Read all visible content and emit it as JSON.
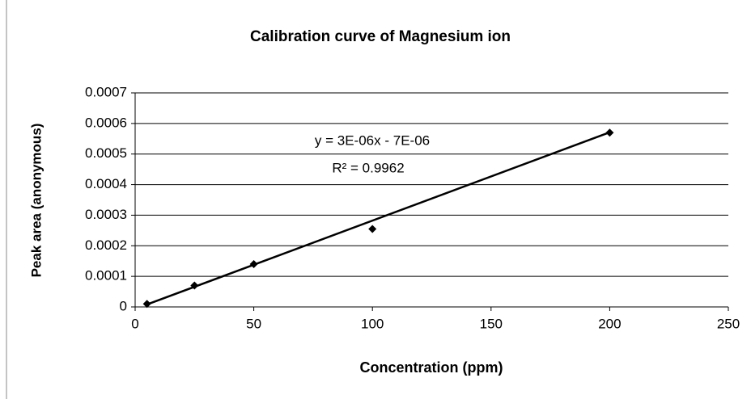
{
  "chart_data": {
    "type": "scatter",
    "title": "Calibration curve of Magnesium ion",
    "x_label": "Concentration (ppm)",
    "y_label": "Peak area (anonymous)",
    "x": [
      5,
      25,
      50,
      100,
      200
    ],
    "series": [
      {
        "color": "#000000",
        "values": [
          1e-05,
          7e-05,
          0.00014,
          0.000255,
          0.00057
        ]
      }
    ],
    "trendline": {
      "x": [
        5,
        200
      ],
      "values": [
        8e-06,
        0.000571
      ],
      "color": "#000000"
    },
    "annotations": [
      "y = 3E-06x - 7E-06",
      "R² = 0.9962"
    ],
    "xlim": [
      0,
      250
    ],
    "xticks": [
      0,
      50,
      100,
      150,
      200,
      250
    ],
    "ylim": [
      0,
      0.0007
    ],
    "yticks": [
      0,
      0.0001,
      0.0002,
      0.0003,
      0.0004,
      0.0005,
      0.0006,
      0.0007
    ],
    "grid": true
  }
}
